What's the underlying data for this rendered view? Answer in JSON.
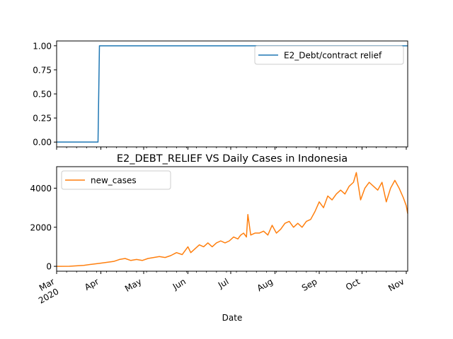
{
  "colors": {
    "series1": "#1f77b4",
    "series2": "#ff7f0e",
    "axes": "#000000",
    "legend_border": "#cccccc"
  },
  "chart_data": [
    {
      "type": "line",
      "title": "",
      "xlabel": "",
      "ylabel": "",
      "ylim": [
        -0.05,
        1.05
      ],
      "yticks": [
        "0.00",
        "0.25",
        "0.50",
        "0.75",
        "1.00"
      ],
      "legend_placement": "top-right",
      "grid": false,
      "series": [
        {
          "name": "E2_Debt/contract relief",
          "x": [
            "2020-03-01",
            "2020-03-30",
            "2020-03-31",
            "2020-11-02"
          ],
          "values": [
            0,
            0,
            1,
            1
          ]
        }
      ]
    },
    {
      "type": "line",
      "title": "E2_DEBT_RELIEF VS Daily Cases in Indonesia",
      "xlabel": "Date",
      "ylabel": "",
      "ylim": [
        -250,
        5100
      ],
      "yticks": [
        "0",
        "2000",
        "4000"
      ],
      "legend_placement": "top-left",
      "grid": false,
      "xticks": [
        {
          "label": "Mar",
          "sub": "2020",
          "date": "2020-03-01"
        },
        {
          "label": "Apr",
          "sub": "",
          "date": "2020-04-01"
        },
        {
          "label": "May",
          "sub": "",
          "date": "2020-05-01"
        },
        {
          "label": "Jun",
          "sub": "",
          "date": "2020-06-01"
        },
        {
          "label": "Jul",
          "sub": "",
          "date": "2020-07-01"
        },
        {
          "label": "Aug",
          "sub": "",
          "date": "2020-08-01"
        },
        {
          "label": "Sep",
          "sub": "",
          "date": "2020-09-01"
        },
        {
          "label": "Oct",
          "sub": "",
          "date": "2020-10-01"
        },
        {
          "label": "Nov",
          "sub": "",
          "date": "2020-11-01"
        }
      ],
      "series": [
        {
          "name": "new_cases",
          "x": [
            "2020-03-01",
            "2020-03-10",
            "2020-03-20",
            "2020-03-25",
            "2020-03-31",
            "2020-04-05",
            "2020-04-10",
            "2020-04-14",
            "2020-04-18",
            "2020-04-22",
            "2020-04-26",
            "2020-04-30",
            "2020-05-04",
            "2020-05-08",
            "2020-05-12",
            "2020-05-16",
            "2020-05-20",
            "2020-05-24",
            "2020-05-28",
            "2020-06-01",
            "2020-06-03",
            "2020-06-06",
            "2020-06-09",
            "2020-06-12",
            "2020-06-15",
            "2020-06-18",
            "2020-06-21",
            "2020-06-24",
            "2020-06-27",
            "2020-06-30",
            "2020-07-03",
            "2020-07-06",
            "2020-07-08",
            "2020-07-10",
            "2020-07-12",
            "2020-07-13",
            "2020-07-15",
            "2020-07-18",
            "2020-07-21",
            "2020-07-24",
            "2020-07-27",
            "2020-07-30",
            "2020-08-02",
            "2020-08-05",
            "2020-08-08",
            "2020-08-11",
            "2020-08-14",
            "2020-08-17",
            "2020-08-20",
            "2020-08-23",
            "2020-08-26",
            "2020-08-29",
            "2020-09-01",
            "2020-09-04",
            "2020-09-07",
            "2020-09-10",
            "2020-09-13",
            "2020-09-16",
            "2020-09-19",
            "2020-09-22",
            "2020-09-25",
            "2020-09-27",
            "2020-09-30",
            "2020-10-03",
            "2020-10-06",
            "2020-10-09",
            "2020-10-12",
            "2020-10-15",
            "2020-10-18",
            "2020-10-21",
            "2020-10-24",
            "2020-10-27",
            "2020-10-30",
            "2020-11-01",
            "2020-11-02"
          ],
          "values": [
            0,
            2,
            50,
            100,
            150,
            200,
            250,
            350,
            400,
            300,
            350,
            300,
            400,
            450,
            500,
            450,
            550,
            700,
            600,
            1000,
            700,
            900,
            1100,
            1000,
            1200,
            1000,
            1200,
            1300,
            1200,
            1300,
            1500,
            1400,
            1600,
            1700,
            1500,
            2650,
            1600,
            1700,
            1700,
            1800,
            1600,
            2100,
            1700,
            1900,
            2200,
            2300,
            2000,
            2200,
            2000,
            2300,
            2400,
            2800,
            3300,
            3000,
            3600,
            3400,
            3700,
            3900,
            3700,
            4100,
            4300,
            4800,
            3400,
            4000,
            4300,
            4100,
            3900,
            4300,
            3300,
            4000,
            4400,
            4000,
            3500,
            3100,
            2700
          ]
        }
      ]
    }
  ]
}
